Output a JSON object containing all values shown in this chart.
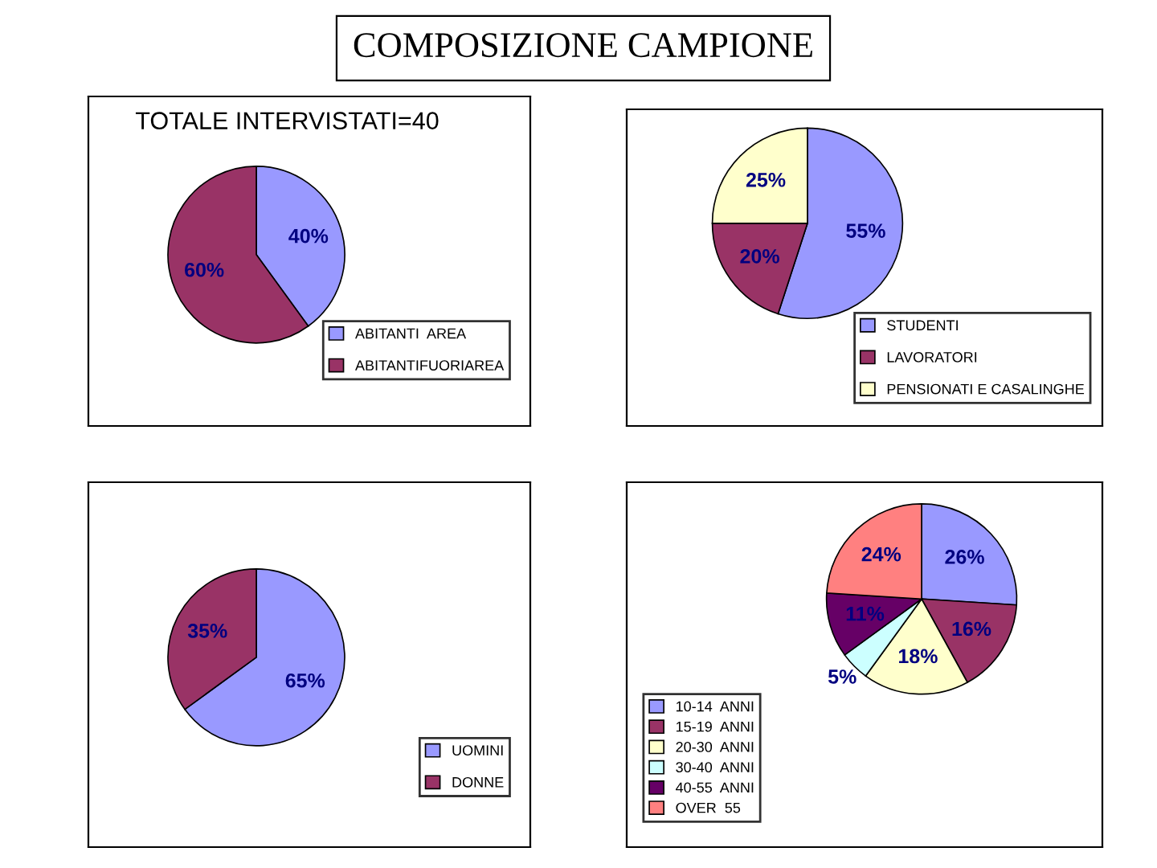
{
  "chart_data": [
    {
      "type": "pie",
      "title": "COMPOSIZIONE CAMPIONE",
      "subtitle": "TOTALE INTERVISTATI=40",
      "categories": [
        "ABITANTI  AREA",
        "ABITANTIFUORIAREA"
      ],
      "values": [
        40,
        60
      ],
      "colors": [
        "#9999ff",
        "#993366"
      ],
      "value_labels": [
        "40%",
        "60%"
      ],
      "legend": "bottom right"
    },
    {
      "type": "pie",
      "categories": [
        "STUDENTI",
        "LAVORATORI",
        "PENSIONATI E CASALINGHE"
      ],
      "values": [
        55,
        20,
        25
      ],
      "colors": [
        "#9999ff",
        "#993366",
        "#ffffcc"
      ],
      "value_labels": [
        "55%",
        "20%",
        "25%"
      ],
      "legend": "right"
    },
    {
      "type": "pie",
      "categories": [
        "UOMINI",
        "DONNE"
      ],
      "values": [
        65,
        35
      ],
      "colors": [
        "#9999ff",
        "#993366"
      ],
      "value_labels": [
        "65%",
        "35%"
      ],
      "legend": "bottom right"
    },
    {
      "type": "pie",
      "categories": [
        "10-14  ANNI",
        "15-19  ANNI",
        "20-30  ANNI",
        "30-40  ANNI",
        "40-55  ANNI",
        "OVER  55"
      ],
      "values": [
        26,
        16,
        18,
        5,
        11,
        24
      ],
      "colors": [
        "#9999ff",
        "#993366",
        "#ffffcc",
        "#ccffff",
        "#660066",
        "#ff8080"
      ],
      "value_labels": [
        "26%",
        "16%",
        "18%",
        "5%",
        "11%",
        "24%"
      ],
      "legend": "bottom left"
    }
  ]
}
